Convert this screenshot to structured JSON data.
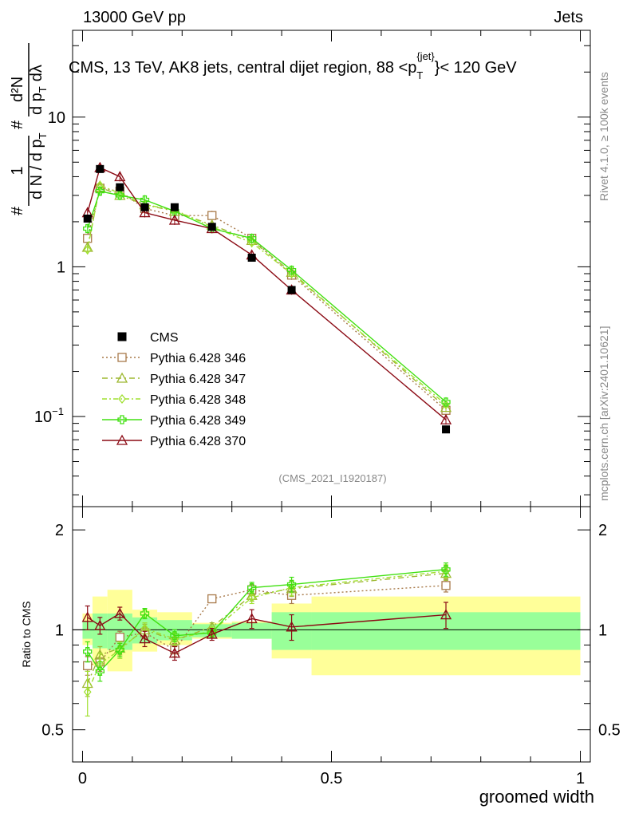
{
  "header": {
    "left": "13000 GeV pp",
    "right": "Jets"
  },
  "side_text": {
    "rivet": "Rivet 4.1.0, ≥ 100k events",
    "mcplots": "mcplots.cern.ch [arXiv:2401.10621]"
  },
  "chart_data": {
    "type": "line",
    "title": "CMS, 13 TeV, AK8 jets, central dijet region, 88 <p_T^{jet}< 120 GeV",
    "title_parts": {
      "main": "CMS, 13 TeV, AK8 jets, central dijet region, 88 <p",
      "sub": "T",
      "sup": "{jet}",
      "tail": "}< 120 GeV"
    },
    "analysis_id": "(CMS_2021_I1920187)",
    "xlabel": "groomed width",
    "ylabel_top": "1/dN/dpT d²N/dpT dλ",
    "ylabel_parts": {
      "hash": "#",
      "one": "1",
      "dn": "d N / d p",
      "sub_t": "T",
      "d2n": "d²N",
      "dpt": "d p",
      "dlambda": "dλ"
    },
    "ylabel_ratio": "Ratio to CMS",
    "xlim": [
      -0.02,
      1.02
    ],
    "ylim_top": [
      0.025,
      38
    ],
    "ylim_ratio": [
      0.4,
      2.35
    ],
    "x_ticks": [
      {
        "v": 0,
        "label": "0"
      },
      {
        "v": 0.5,
        "label": "0.5"
      },
      {
        "v": 1,
        "label": "1"
      }
    ],
    "y_ticks_top": [
      {
        "v": 10,
        "base": "10",
        "exp": ""
      },
      {
        "v": 1,
        "base": "1",
        "exp": ""
      },
      {
        "v": 0.1,
        "base": "10",
        "exp": "−1"
      }
    ],
    "y_ticks_ratio": [
      {
        "v": 0.5,
        "label": "0.5"
      },
      {
        "v": 1,
        "label": "1"
      },
      {
        "v": 2,
        "label": "2"
      }
    ],
    "x_edges": [
      0,
      0.02,
      0.05,
      0.1,
      0.15,
      0.22,
      0.3,
      0.38,
      0.46,
      1.0
    ],
    "x": [
      0.01,
      0.035,
      0.075,
      0.125,
      0.185,
      0.26,
      0.34,
      0.42,
      0.73
    ],
    "band_inner": [
      [
        0.94,
        1.06
      ],
      [
        0.88,
        1.12
      ],
      [
        0.87,
        1.12
      ],
      [
        0.91,
        1.09
      ],
      [
        0.93,
        1.07
      ],
      [
        0.95,
        1.04
      ],
      [
        0.94,
        1.05
      ],
      [
        0.87,
        1.13
      ],
      [
        0.87,
        1.13
      ]
    ],
    "band_outer": [
      [
        0.9,
        1.12
      ],
      [
        0.78,
        1.26
      ],
      [
        0.75,
        1.32
      ],
      [
        0.86,
        1.15
      ],
      [
        0.9,
        1.13
      ],
      [
        0.94,
        1.05
      ],
      [
        0.94,
        1.06
      ],
      [
        0.82,
        1.2
      ],
      [
        0.73,
        1.26
      ]
    ],
    "data": {
      "name": "CMS",
      "color": "#000000",
      "values": [
        2.1,
        4.5,
        3.4,
        2.5,
        2.5,
        1.85,
        1.15,
        0.7,
        0.082
      ]
    },
    "series": [
      {
        "name": "Pythia 6.428 346",
        "color": "#a87a4a",
        "marker": "square",
        "dash": "2,3",
        "values": [
          1.55,
          3.35,
          3.2,
          2.45,
          2.2,
          2.2,
          1.55,
          0.88,
          0.11
        ],
        "ratio": [
          0.78,
          0.8,
          0.95,
          0.98,
          0.87,
          1.24,
          1.32,
          1.27,
          1.36
        ],
        "rerr": [
          0.05,
          0.05,
          0.04,
          0.04,
          0.04,
          0.03,
          0.05,
          0.07,
          0.06
        ]
      },
      {
        "name": "Pythia 6.428 347",
        "color": "#9db830",
        "marker": "triangle",
        "dash": "7,4,2,4",
        "values": [
          1.35,
          3.4,
          3.0,
          2.6,
          2.35,
          1.9,
          1.5,
          0.92,
          0.115
        ],
        "ratio": [
          0.69,
          0.84,
          0.88,
          1.0,
          0.93,
          1.02,
          1.27,
          1.33,
          1.48
        ],
        "rerr": [
          0.06,
          0.05,
          0.04,
          0.04,
          0.04,
          0.03,
          0.05,
          0.07,
          0.07
        ]
      },
      {
        "name": "Pythia 6.428 348",
        "color": "#a0e030",
        "marker": "diamond",
        "dash": "6,3,2,3",
        "values": [
          1.3,
          3.5,
          3.1,
          2.6,
          2.4,
          1.85,
          1.45,
          0.9,
          0.12
        ],
        "ratio": [
          0.65,
          0.79,
          0.87,
          1.01,
          0.94,
          0.99,
          1.25,
          1.34,
          1.5
        ],
        "rerr": [
          0.1,
          0.06,
          0.05,
          0.04,
          0.04,
          0.03,
          0.05,
          0.07,
          0.07
        ]
      },
      {
        "name": "Pythia 6.428 349",
        "color": "#40e010",
        "marker": "cross",
        "dash": "",
        "values": [
          1.8,
          3.2,
          3.0,
          2.8,
          2.35,
          1.8,
          1.55,
          0.95,
          0.125
        ],
        "ratio": [
          0.86,
          0.75,
          0.87,
          1.12,
          0.96,
          0.98,
          1.34,
          1.37,
          1.52
        ],
        "rerr": [
          0.06,
          0.05,
          0.04,
          0.04,
          0.04,
          0.03,
          0.05,
          0.07,
          0.07
        ]
      },
      {
        "name": "Pythia 6.428 370",
        "color": "#8b0a14",
        "marker": "triangle",
        "dash": "",
        "values": [
          2.3,
          4.6,
          4.0,
          2.3,
          2.05,
          1.8,
          1.2,
          0.7,
          0.095
        ],
        "ratio": [
          1.09,
          1.03,
          1.12,
          0.94,
          0.85,
          0.97,
          1.08,
          1.02,
          1.11
        ],
        "rerr": [
          0.09,
          0.06,
          0.05,
          0.05,
          0.04,
          0.04,
          0.07,
          0.09,
          0.1
        ]
      }
    ]
  }
}
